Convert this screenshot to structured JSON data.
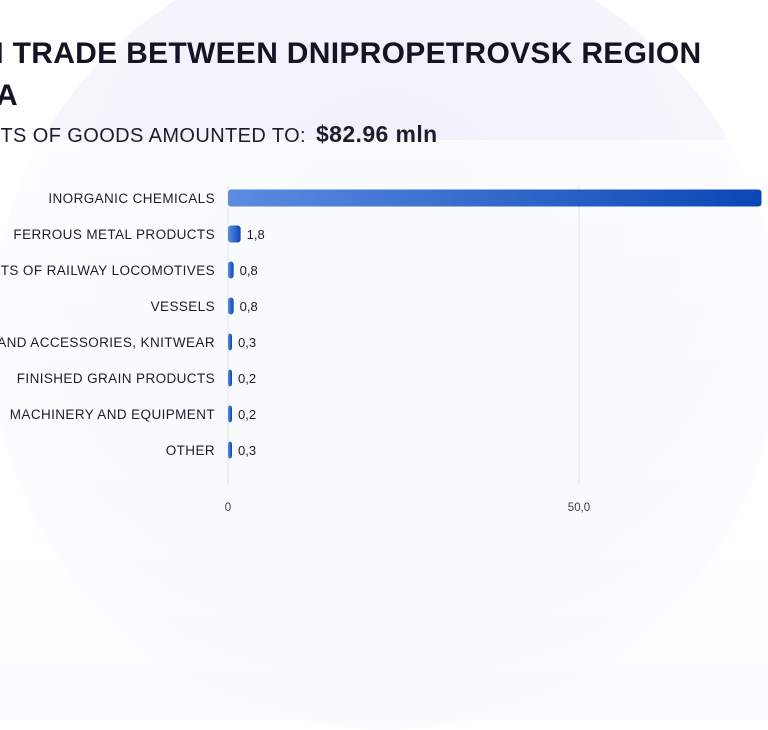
{
  "header": {
    "title_line1": "N TRADE BETWEEN DNIPROPETROVSK REGION",
    "title_line2": "A",
    "subtitle_prefix": "ORTS OF GOODS AMOUNTED TO:",
    "subtitle_amount": "$82.96 mln"
  },
  "colors": {
    "bar_dark": "#0a47b5",
    "bar_light": "#5b8ce0",
    "grid": "#dfe3ee"
  },
  "chart_data": {
    "type": "bar",
    "orientation": "horizontal",
    "categories": [
      "INORGANIC CHEMICALS",
      "FERROUS METAL PRODUCTS",
      "TS OF RAILWAY LOCOMOTIVES",
      "VESSELS",
      "AND ACCESSORIES, KNITWEAR",
      "FINISHED GRAIN PRODUCTS",
      "MACHINERY AND EQUIPMENT",
      "OTHER"
    ],
    "values": [
      76.0,
      1.8,
      0.8,
      0.8,
      0.3,
      0.2,
      0.2,
      0.3
    ],
    "value_labels": [
      "",
      "1,8",
      "0,8",
      "0,8",
      "0,3",
      "0,2",
      "0,2",
      "0,3"
    ],
    "x_ticks": [
      0,
      50
    ],
    "x_tick_labels": [
      "0",
      "50,0"
    ],
    "xlim": [
      0,
      76
    ],
    "grid": true
  }
}
